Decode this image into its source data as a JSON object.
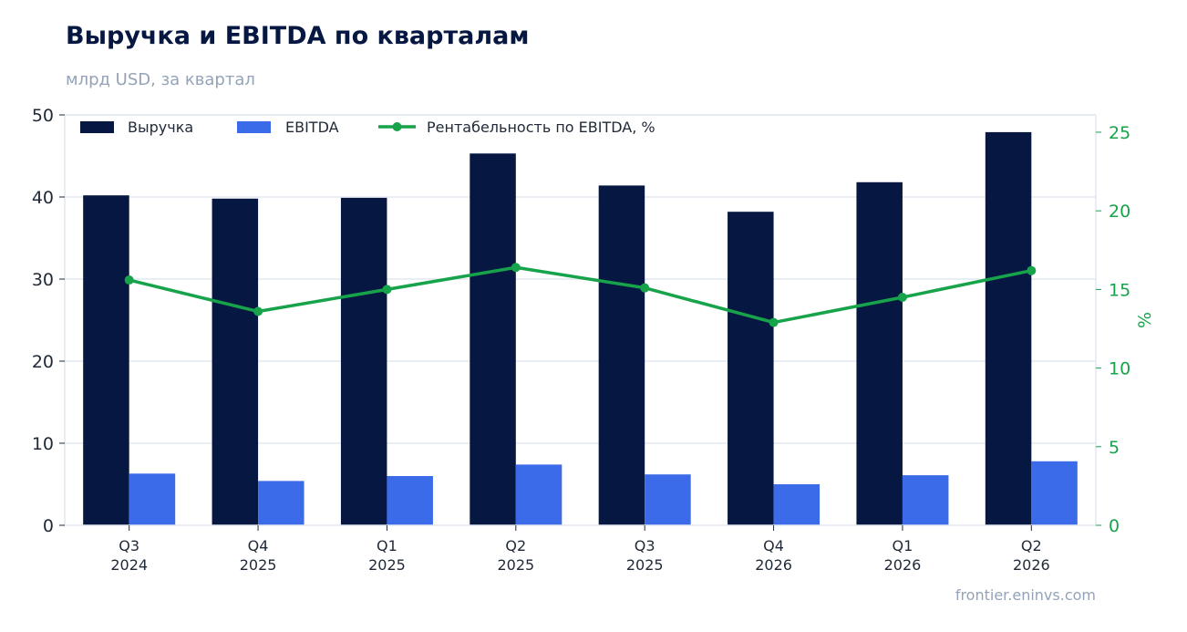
{
  "chart_data": {
    "type": "bar",
    "title": "Выручка и EBITDA по кварталам",
    "subtitle": "млрд USD, за квартал",
    "categories": [
      [
        "Q3",
        "2024"
      ],
      [
        "Q4",
        "2025"
      ],
      [
        "Q1",
        "2025"
      ],
      [
        "Q2",
        "2025"
      ],
      [
        "Q3",
        "2025"
      ],
      [
        "Q4",
        "2026"
      ],
      [
        "Q1",
        "2026"
      ],
      [
        "Q2",
        "2026"
      ]
    ],
    "series": [
      {
        "name": "Выручка",
        "type": "bar",
        "axis": "left",
        "color": "#061741",
        "values": [
          40.2,
          39.8,
          39.9,
          45.3,
          41.4,
          38.2,
          41.8,
          47.9
        ]
      },
      {
        "name": "EBITDA",
        "type": "bar",
        "axis": "left",
        "color": "#3b6be8",
        "values": [
          6.3,
          5.4,
          6.0,
          7.4,
          6.2,
          5.0,
          6.1,
          7.8
        ]
      },
      {
        "name": "Рентабельность по EBITDA, %",
        "type": "line",
        "axis": "right",
        "color": "#16a34a",
        "values": [
          15.6,
          13.6,
          15.0,
          16.4,
          15.1,
          12.9,
          14.5,
          16.2
        ]
      }
    ],
    "y_left": {
      "label": "",
      "range": [
        0,
        50
      ],
      "ticks": [
        0,
        10,
        20,
        30,
        40,
        50
      ]
    },
    "y_right": {
      "label": "%",
      "range": [
        0,
        26.1
      ],
      "ticks": [
        0,
        5,
        10,
        15,
        20,
        25
      ],
      "color": "#16a34a"
    },
    "grid": true,
    "legend_position": "top-left",
    "source": "frontier.eninvs.com"
  }
}
